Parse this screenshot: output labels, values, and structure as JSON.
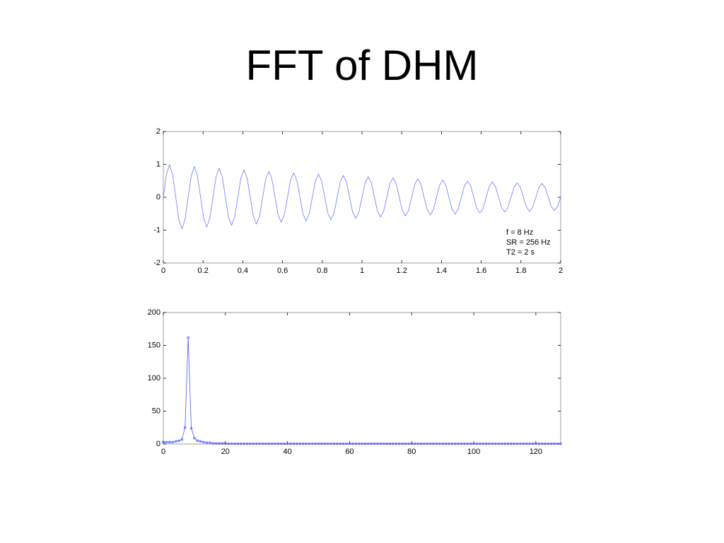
{
  "title": "FFT of DHM",
  "chart_data": [
    {
      "type": "line",
      "annotations": [
        "f = 8 Hz",
        "SR = 256 Hz",
        "T2 = 2 s"
      ],
      "xlim": [
        0,
        2
      ],
      "xticks": [
        0,
        0.2,
        0.4,
        0.6,
        0.8,
        1,
        1.2,
        1.4,
        1.6,
        1.8,
        2
      ],
      "ylim": [
        -2,
        2
      ],
      "yticks": [
        -2,
        -1,
        0,
        1,
        2
      ],
      "x": [
        0,
        0.015625,
        0.03125,
        0.046875,
        0.0625,
        0.078125,
        0.09375,
        0.109375,
        0.125,
        0.140625,
        0.15625,
        0.171875,
        0.1875,
        0.203125,
        0.21875,
        0.234375,
        0.25,
        0.265625,
        0.28125,
        0.296875,
        0.3125,
        0.328125,
        0.34375,
        0.359375,
        0.375,
        0.390625,
        0.40625,
        0.421875,
        0.4375,
        0.453125,
        0.46875,
        0.484375,
        0.5,
        0.515625,
        0.53125,
        0.546875,
        0.5625,
        0.578125,
        0.59375,
        0.609375,
        0.625,
        0.640625,
        0.65625,
        0.671875,
        0.6875,
        0.703125,
        0.71875,
        0.734375,
        0.75,
        0.765625,
        0.78125,
        0.796875,
        0.8125,
        0.828125,
        0.84375,
        0.859375,
        0.875,
        0.890625,
        0.90625,
        0.921875,
        0.9375,
        0.953125,
        0.96875,
        0.984375,
        1,
        1.015625,
        1.03125,
        1.046875,
        1.0625,
        1.078125,
        1.09375,
        1.109375,
        1.125,
        1.140625,
        1.15625,
        1.171875,
        1.1875,
        1.203125,
        1.21875,
        1.234375,
        1.25,
        1.265625,
        1.28125,
        1.296875,
        1.3125,
        1.328125,
        1.34375,
        1.359375,
        1.375,
        1.390625,
        1.40625,
        1.421875,
        1.4375,
        1.453125,
        1.46875,
        1.484375,
        1.5,
        1.515625,
        1.53125,
        1.546875,
        1.5625,
        1.578125,
        1.59375,
        1.609375,
        1.625,
        1.640625,
        1.65625,
        1.671875,
        1.6875,
        1.703125,
        1.71875,
        1.734375,
        1.75,
        1.765625,
        1.78125,
        1.796875,
        1.8125,
        1.828125,
        1.84375,
        1.859375,
        1.875,
        1.890625,
        1.90625,
        1.921875,
        1.9375,
        1.953125,
        1.96875,
        1.984375,
        2
      ],
      "series": [
        {
          "color": "#6b7bff",
          "values": [
            0,
            0.7,
            0.99,
            0.69,
            0,
            -0.68,
            -0.96,
            -0.67,
            0,
            0.66,
            0.93,
            0.65,
            0,
            -0.64,
            -0.9,
            -0.63,
            0,
            0.63,
            0.88,
            0.62,
            0,
            -0.61,
            -0.85,
            -0.6,
            0,
            0.59,
            0.83,
            0.58,
            0,
            -0.57,
            -0.81,
            -0.57,
            0,
            0.56,
            0.78,
            0.55,
            0,
            -0.54,
            -0.76,
            -0.53,
            0,
            0.53,
            0.74,
            0.52,
            0,
            -0.51,
            -0.72,
            -0.5,
            0,
            0.5,
            0.7,
            0.49,
            0,
            -0.48,
            -0.68,
            -0.48,
            0,
            0.47,
            0.66,
            0.46,
            0,
            -0.46,
            -0.64,
            -0.45,
            0,
            0.44,
            0.62,
            0.44,
            0,
            -0.43,
            -0.6,
            -0.42,
            0,
            0.42,
            0.59,
            0.41,
            0,
            -0.41,
            -0.57,
            -0.4,
            0,
            0.4,
            0.56,
            0.39,
            0,
            -0.38,
            -0.54,
            -0.38,
            0,
            0.37,
            0.52,
            0.37,
            0,
            -0.36,
            -0.51,
            -0.36,
            0,
            0.35,
            0.49,
            0.35,
            0,
            -0.34,
            -0.48,
            -0.34,
            0,
            0.33,
            0.47,
            0.33,
            0,
            -0.32,
            -0.45,
            -0.32,
            0,
            0.31,
            0.44,
            0.31,
            0,
            -0.3,
            -0.43,
            -0.3,
            0,
            0.3,
            0.42,
            0.29,
            0,
            -0.29,
            -0.4,
            -0.28,
            0
          ]
        }
      ]
    },
    {
      "type": "line",
      "markers": true,
      "xlim": [
        0,
        128
      ],
      "xticks": [
        0,
        20,
        40,
        60,
        80,
        100,
        120
      ],
      "ylim": [
        0,
        200
      ],
      "yticks": [
        0,
        50,
        100,
        150,
        200
      ],
      "x": [
        0,
        1,
        2,
        3,
        4,
        5,
        6,
        7,
        8,
        9,
        10,
        11,
        12,
        13,
        14,
        15,
        16,
        17,
        18,
        19,
        20,
        21,
        22,
        23,
        24,
        25,
        26,
        27,
        28,
        29,
        30,
        31,
        32,
        33,
        34,
        35,
        36,
        37,
        38,
        39,
        40,
        41,
        42,
        43,
        44,
        45,
        46,
        47,
        48,
        49,
        50,
        51,
        52,
        53,
        54,
        55,
        56,
        57,
        58,
        59,
        60,
        61,
        62,
        63,
        64,
        65,
        66,
        67,
        68,
        69,
        70,
        71,
        72,
        73,
        74,
        75,
        76,
        77,
        78,
        79,
        80,
        81,
        82,
        83,
        84,
        85,
        86,
        87,
        88,
        89,
        90,
        91,
        92,
        93,
        94,
        95,
        96,
        97,
        98,
        99,
        100,
        101,
        102,
        103,
        104,
        105,
        106,
        107,
        108,
        109,
        110,
        111,
        112,
        113,
        114,
        115,
        116,
        117,
        118,
        119,
        120,
        121,
        122,
        123,
        124,
        125,
        126,
        127,
        128
      ],
      "series": [
        {
          "color": "#4a5cff",
          "values": [
            3,
            3,
            3,
            3,
            4,
            5,
            7,
            25,
            162,
            24,
            9,
            5,
            4,
            3,
            2,
            2,
            1,
            1,
            1,
            1,
            1,
            0.5,
            0.5,
            0.5,
            0.5,
            0.5,
            0.5,
            0.5,
            0.5,
            0.5,
            0.5,
            0.5,
            0.5,
            0.5,
            0.5,
            0.5,
            0.5,
            0.5,
            0.5,
            0.5,
            0.5,
            0.5,
            0.5,
            0.5,
            0.5,
            0.5,
            0.5,
            0.5,
            0.5,
            0.5,
            0.5,
            0.5,
            0.5,
            0.5,
            0.5,
            0.5,
            0.5,
            0.5,
            0.5,
            0.5,
            0.5,
            0.5,
            0.5,
            0.5,
            0.5,
            0.5,
            0.5,
            0.5,
            0.5,
            0.5,
            0.5,
            0.5,
            0.5,
            0.5,
            0.5,
            0.5,
            0.5,
            0.5,
            0.5,
            0.5,
            0.5,
            0.5,
            0.5,
            0.5,
            0.5,
            0.5,
            0.5,
            0.5,
            0.5,
            0.5,
            0.5,
            0.5,
            0.5,
            0.5,
            0.5,
            0.5,
            0.5,
            0.5,
            0.5,
            0.5,
            0.5,
            0.5,
            0.5,
            0.5,
            0.5,
            0.5,
            0.5,
            0.5,
            0.5,
            0.5,
            0.5,
            0.5,
            0.5,
            0.5,
            0.5,
            0.5,
            0.5,
            0.5,
            0.5,
            0.5,
            0.5,
            0.5,
            0.5,
            0.5,
            0.5,
            0.5,
            0.5,
            0.5,
            0.5
          ]
        }
      ]
    }
  ]
}
